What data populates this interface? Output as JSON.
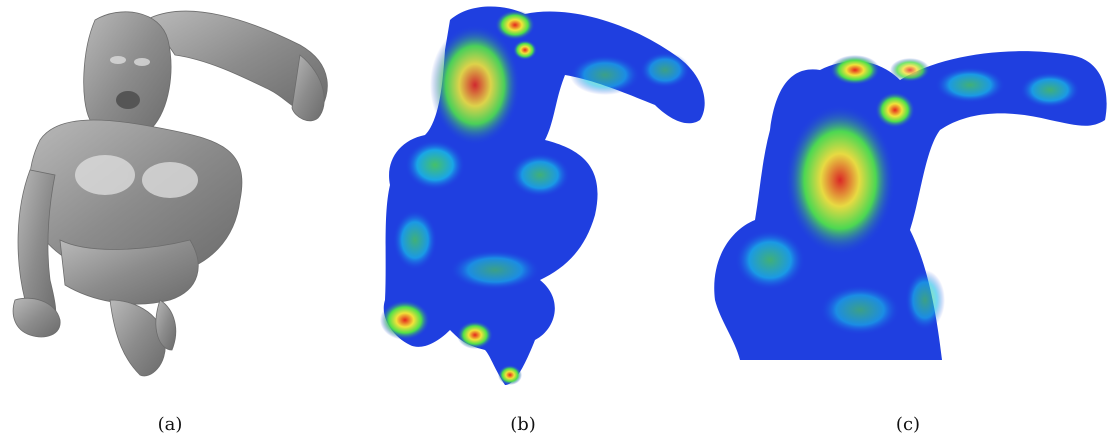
{
  "figure": {
    "panels": [
      {
        "caption": "(a)"
      },
      {
        "caption": "(b)"
      },
      {
        "caption": "(c)"
      }
    ],
    "colors": {
      "mesh_gray": "#8a8a8a",
      "heat_low": "#1f3fe0",
      "heat_mid": "#18c0e8",
      "heat_high_green": "#4fe04a",
      "heat_yellow": "#f2e23a",
      "heat_red": "#e4261c"
    }
  }
}
